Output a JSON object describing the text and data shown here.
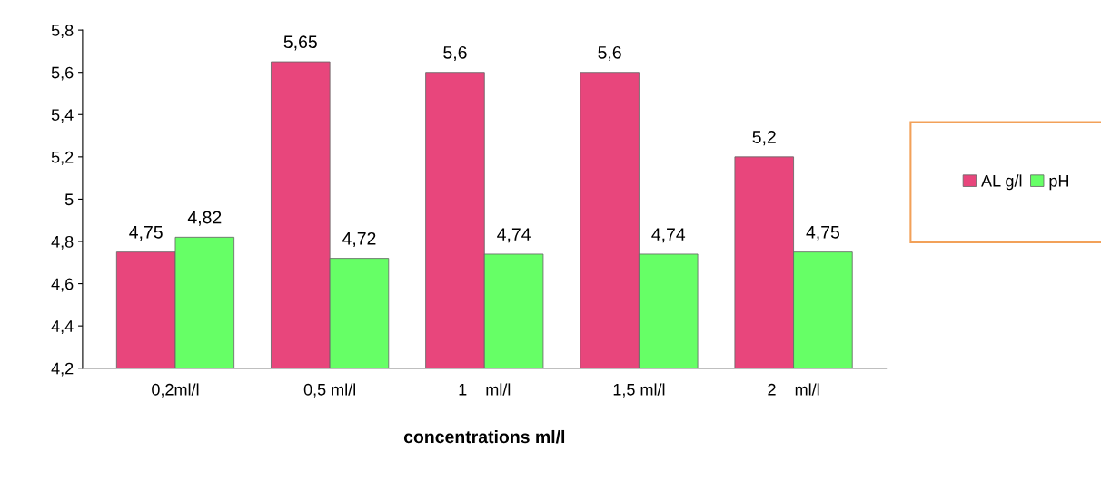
{
  "chart_data": {
    "type": "bar",
    "xlabel": "concentrations ml/l",
    "categories": [
      "0,2ml/l",
      "0,5 ml/l",
      "1    ml/l",
      "1,5 ml/l",
      "2    ml/l"
    ],
    "series": [
      {
        "name": "AL g/l",
        "color": "#e8467c",
        "values": [
          4.75,
          5.65,
          5.6,
          5.6,
          5.2
        ],
        "value_labels": [
          "4,75",
          "5,65",
          "5,6",
          "5,6",
          "5,2"
        ]
      },
      {
        "name": "pH",
        "color": "#66ff66",
        "values": [
          4.82,
          4.72,
          4.74,
          4.74,
          4.75
        ],
        "value_labels": [
          "4,82",
          "4,72",
          "4,74",
          "4,74",
          "4,75"
        ]
      }
    ],
    "ylim": [
      4.2,
      5.8
    ],
    "yticks": [
      {
        "value": 4.2,
        "label": "4,2"
      },
      {
        "value": 4.4,
        "label": "4,4"
      },
      {
        "value": 4.6,
        "label": "4,6"
      },
      {
        "value": 4.8,
        "label": "4,8"
      },
      {
        "value": 5,
        "label": "5"
      },
      {
        "value": 5.2,
        "label": "5,2"
      },
      {
        "value": 5.4,
        "label": "5,4"
      },
      {
        "value": 5.6,
        "label": "5,6"
      },
      {
        "value": 5.8,
        "label": "5,8"
      }
    ],
    "grid": false,
    "legend": "right"
  }
}
